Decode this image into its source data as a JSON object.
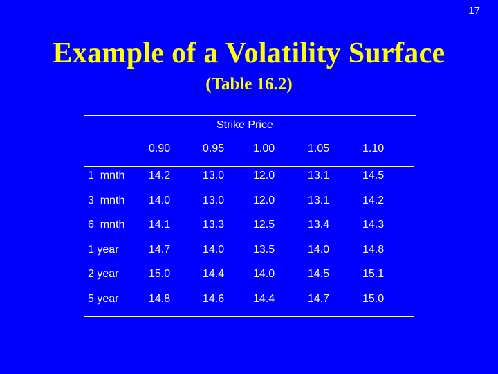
{
  "page_number": "17",
  "title": "Example of a Volatility Surface",
  "subtitle": "(Table 16.2)",
  "table": {
    "column_group_label": "Strike Price",
    "strikes": [
      "0.90",
      "0.95",
      "1.00",
      "1.05",
      "1.10"
    ],
    "rows": [
      {
        "label": "1  mnth",
        "values": [
          "14.2",
          "13.0",
          "12.0",
          "13.1",
          "14.5"
        ]
      },
      {
        "label": "3  mnth",
        "values": [
          "14.0",
          "13.0",
          "12.0",
          "13.1",
          "14.2"
        ]
      },
      {
        "label": "6  mnth",
        "values": [
          "14.1",
          "13.3",
          "12.5",
          "13.4",
          "14.3"
        ]
      },
      {
        "label": "1 year",
        "values": [
          "14.7",
          "14.0",
          "13.5",
          "14.0",
          "14.8"
        ]
      },
      {
        "label": "2 year",
        "values": [
          "15.0",
          "14.4",
          "14.0",
          "14.5",
          "15.1"
        ]
      },
      {
        "label": "5 year",
        "values": [
          "14.8",
          "14.6",
          "14.4",
          "14.7",
          "15.0"
        ]
      }
    ]
  }
}
